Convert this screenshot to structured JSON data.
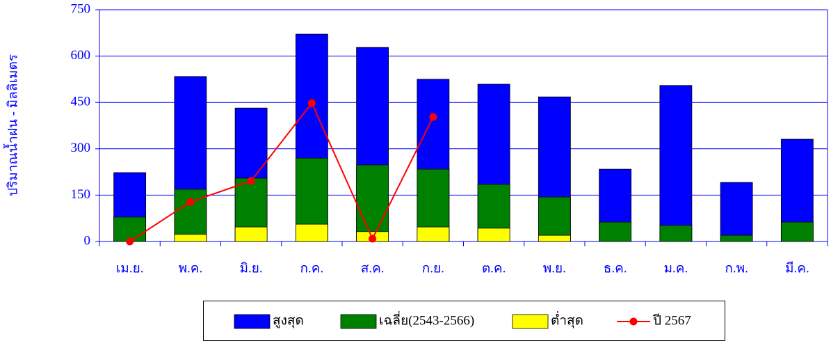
{
  "chart_data": {
    "type": "bar",
    "y_label": "ปริมาณน้ำฝน - มิลลิเมตร",
    "categories": [
      "เม.ย.",
      "พ.ค.",
      "มิ.ย.",
      "ก.ค.",
      "ส.ค.",
      "ก.ย.",
      "ต.ค.",
      "พ.ย.",
      "ธ.ค.",
      "ม.ค.",
      "ก.พ.",
      "มี.ค."
    ],
    "series": [
      {
        "name": "สูงสุด",
        "color": "#0000ff",
        "values": [
          223,
          534,
          432,
          671,
          628,
          525,
          509,
          468,
          234,
          505,
          191,
          331
        ]
      },
      {
        "name": "เฉลี่ย(2543-2566)",
        "color": "#008000",
        "values": [
          79,
          169,
          205,
          270,
          248,
          234,
          185,
          144,
          63,
          52,
          20,
          63
        ]
      },
      {
        "name": "ต่ำสุด",
        "color": "#ffff00",
        "values": [
          0,
          23,
          47,
          56,
          32,
          47,
          43,
          20,
          0,
          0,
          0,
          0
        ]
      },
      {
        "name": "ปี 2567",
        "color": "#ff0000",
        "type": "line",
        "values": [
          0,
          128,
          196,
          448,
          9,
          403,
          null,
          null,
          null,
          null,
          null,
          null
        ]
      }
    ],
    "ylim": [
      0,
      750
    ],
    "yticks": [
      0,
      150,
      300,
      450,
      600,
      750
    ],
    "grid": true,
    "legend": "bottom"
  }
}
